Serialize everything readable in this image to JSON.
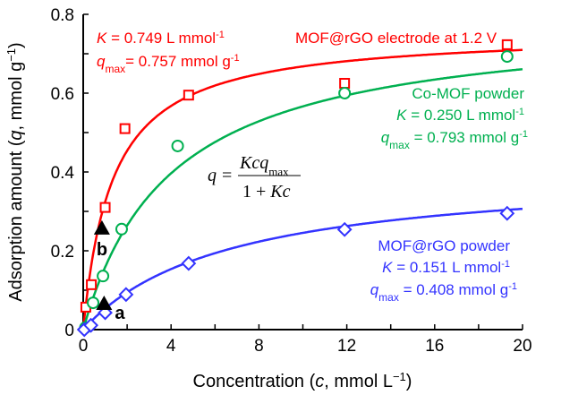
{
  "chart_data": {
    "type": "scatter",
    "xlabel": "Concentration (c, mmol L⁻¹)",
    "ylabel": "Adsorption amount (q, mmol g⁻¹)",
    "xlim": [
      0,
      20
    ],
    "ylim": [
      0,
      0.8
    ],
    "xticks": [
      0,
      4,
      8,
      12,
      16,
      20
    ],
    "yticks": [
      0,
      0.2,
      0.4,
      0.6,
      0.8
    ],
    "xtick_labels": [
      "0",
      "4",
      "8",
      "12",
      "16",
      "20"
    ],
    "ytick_labels": [
      "0",
      "0.2",
      "0.4",
      "0.6",
      "0.8"
    ],
    "grid": false,
    "equation": "q = Kcq_max / (1 + Kc)",
    "series": [
      {
        "name": "MOF@rGO electrode at 1.2 V",
        "color": "#ff0000",
        "marker": "square",
        "K": 0.749,
        "qmax": 0.757,
        "K_label": "K = 0.749 L mmol⁻¹",
        "q_label": "q_max = 0.757 mmol g⁻¹",
        "x": [
          0.12,
          0.37,
          1.0,
          1.9,
          4.8,
          11.9,
          19.3
        ],
        "y": [
          0.057,
          0.114,
          0.31,
          0.51,
          0.595,
          0.625,
          0.723
        ]
      },
      {
        "name": "Co-MOF powder",
        "color": "#00b050",
        "marker": "circle",
        "K": 0.25,
        "qmax": 0.793,
        "K_label": "K = 0.250 L mmol⁻¹",
        "q_label": "q_max = 0.793 mmol g⁻¹",
        "x": [
          0.1,
          0.45,
          0.9,
          1.75,
          4.3,
          11.9,
          19.3
        ],
        "y": [
          0.005,
          0.068,
          0.136,
          0.255,
          0.466,
          0.6,
          0.693
        ]
      },
      {
        "name": "MOF@rGO powder",
        "color": "#3333ff",
        "marker": "diamond",
        "K": 0.151,
        "qmax": 0.408,
        "K_label": "K = 0.151 L mmol⁻¹",
        "q_label": "q_max = 0.408 mmol g⁻¹",
        "x": [
          0.05,
          0.35,
          1.0,
          1.95,
          4.8,
          11.9,
          19.3
        ],
        "y": [
          0.0,
          0.011,
          0.043,
          0.089,
          0.168,
          0.254,
          0.295
        ]
      }
    ],
    "markers": [
      {
        "label": "b",
        "x": 0.85,
        "y": 0.257
      },
      {
        "label": "a",
        "x": 0.95,
        "y": 0.066
      }
    ]
  }
}
